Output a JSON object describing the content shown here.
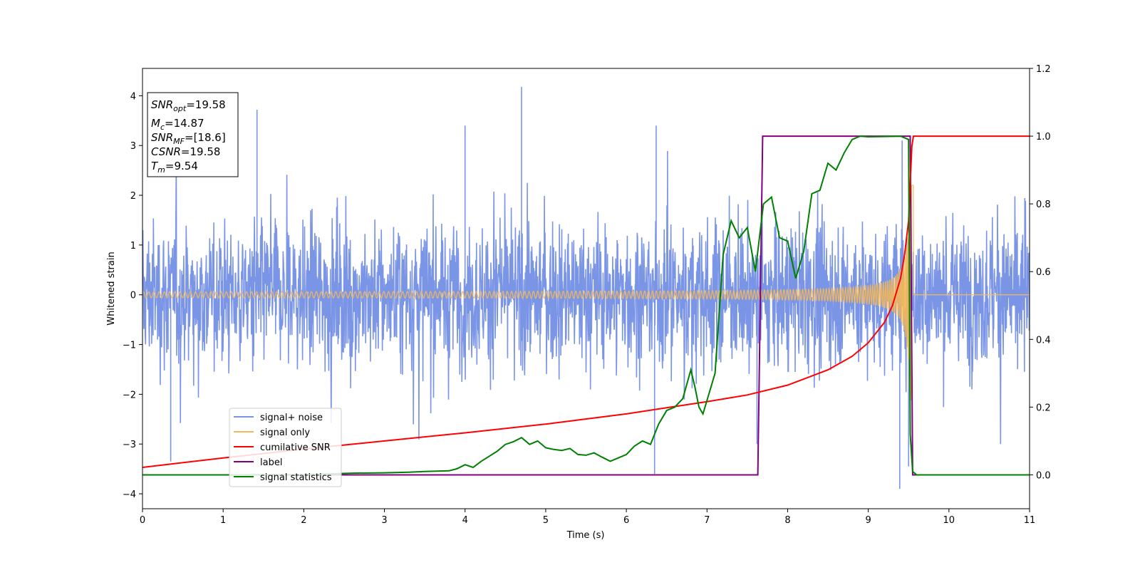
{
  "chart_data": {
    "type": "line",
    "xlabel": "Time (s)",
    "ylabel": "Whitened strain",
    "xlim": [
      0,
      11
    ],
    "ylim_left": [
      -4.3,
      4.55
    ],
    "ylim_right": [
      -0.1,
      1.2
    ],
    "x_ticks": [
      "0",
      "1",
      "2",
      "3",
      "4",
      "5",
      "6",
      "7",
      "8",
      "9",
      "10",
      "11"
    ],
    "y_ticks_left": [
      "−4",
      "−3",
      "−2",
      "−1",
      "0",
      "1",
      "2",
      "3",
      "4"
    ],
    "y_ticks_right": [
      "0.0",
      "0.2",
      "0.4",
      "0.6",
      "0.8",
      "1.0",
      "1.2"
    ],
    "legend_position": "lower-left",
    "info_box": [
      {
        "base": "SNR",
        "sub": "opt",
        "value": "=19.58"
      },
      {
        "base": "M",
        "sub": "c",
        "value": "=14.87"
      },
      {
        "base": "SNR",
        "sub": "MF",
        "value": "=[18.6]"
      },
      {
        "base": "CSNR",
        "sub": "",
        "value": "=19.58"
      },
      {
        "base": "T",
        "sub": "m",
        "value": "=9.54"
      }
    ],
    "series": [
      {
        "name": "signal+ noise",
        "axis": "left",
        "color": "#7b95e6",
        "description_values": "noise envelope approx ±1.6 with spikes up to 4.2 and down to -3.9",
        "spikes": [
          [
            0.35,
            -3.35
          ],
          [
            1.42,
            3.72
          ],
          [
            4.0,
            3.4
          ],
          [
            4.7,
            4.18
          ],
          [
            6.35,
            -3.6
          ],
          [
            6.37,
            3.4
          ],
          [
            7.62,
            -3.0
          ],
          [
            9.39,
            -3.9
          ],
          [
            9.42,
            3.1
          ],
          [
            9.5,
            -3.45
          ]
        ]
      },
      {
        "name": "signal only",
        "axis": "left",
        "color": "#f5b857",
        "chirp": {
          "t_merger": 9.54,
          "amp_start": 0.05,
          "amp_peak": 2.2,
          "end": 9.56
        }
      },
      {
        "name": "cumilative SNR",
        "axis": "right",
        "color": "#ff0000",
        "x": [
          0,
          1,
          2,
          3,
          4,
          5,
          6,
          6.5,
          7,
          7.5,
          8,
          8.5,
          8.8,
          9.0,
          9.2,
          9.3,
          9.4,
          9.45,
          9.5,
          9.54,
          9.56,
          11
        ],
        "values": [
          0.022,
          0.05,
          0.076,
          0.1,
          0.124,
          0.15,
          0.18,
          0.198,
          0.216,
          0.236,
          0.265,
          0.31,
          0.35,
          0.39,
          0.45,
          0.5,
          0.58,
          0.65,
          0.75,
          0.97,
          1.0,
          1.0
        ]
      },
      {
        "name": "label",
        "axis": "right",
        "color": "#800080",
        "x": [
          0,
          7.63,
          7.69,
          9.52,
          9.55,
          11
        ],
        "values": [
          0,
          0,
          1,
          1,
          0,
          0
        ]
      },
      {
        "name": "signal statistics",
        "axis": "right",
        "color": "#008000",
        "x": [
          0,
          1,
          2,
          2.6,
          3.0,
          3.3,
          3.5,
          3.8,
          3.9,
          4.0,
          4.1,
          4.2,
          4.3,
          4.4,
          4.5,
          4.6,
          4.7,
          4.8,
          4.9,
          5.0,
          5.1,
          5.2,
          5.3,
          5.4,
          5.5,
          5.6,
          5.7,
          5.8,
          5.9,
          6.0,
          6.1,
          6.2,
          6.3,
          6.4,
          6.5,
          6.6,
          6.7,
          6.8,
          6.85,
          6.9,
          6.95,
          7.0,
          7.1,
          7.2,
          7.3,
          7.4,
          7.5,
          7.6,
          7.7,
          7.8,
          7.9,
          8.0,
          8.1,
          8.2,
          8.3,
          8.4,
          8.5,
          8.6,
          8.7,
          8.8,
          8.9,
          9.0,
          9.2,
          9.4,
          9.5,
          9.52,
          9.55,
          9.6,
          11
        ],
        "values": [
          0.0,
          0.0,
          0.001,
          0.005,
          0.006,
          0.008,
          0.01,
          0.012,
          0.018,
          0.03,
          0.022,
          0.04,
          0.055,
          0.07,
          0.09,
          0.098,
          0.11,
          0.09,
          0.1,
          0.08,
          0.075,
          0.072,
          0.078,
          0.06,
          0.058,
          0.065,
          0.052,
          0.04,
          0.05,
          0.06,
          0.085,
          0.1,
          0.09,
          0.15,
          0.19,
          0.2,
          0.225,
          0.31,
          0.26,
          0.2,
          0.18,
          0.22,
          0.3,
          0.65,
          0.75,
          0.7,
          0.73,
          0.6,
          0.8,
          0.82,
          0.7,
          0.69,
          0.58,
          0.66,
          0.83,
          0.84,
          0.92,
          0.9,
          0.95,
          0.99,
          1.0,
          0.998,
          0.999,
          1.0,
          0.99,
          0.12,
          0.01,
          0.0,
          0.0
        ]
      }
    ]
  }
}
